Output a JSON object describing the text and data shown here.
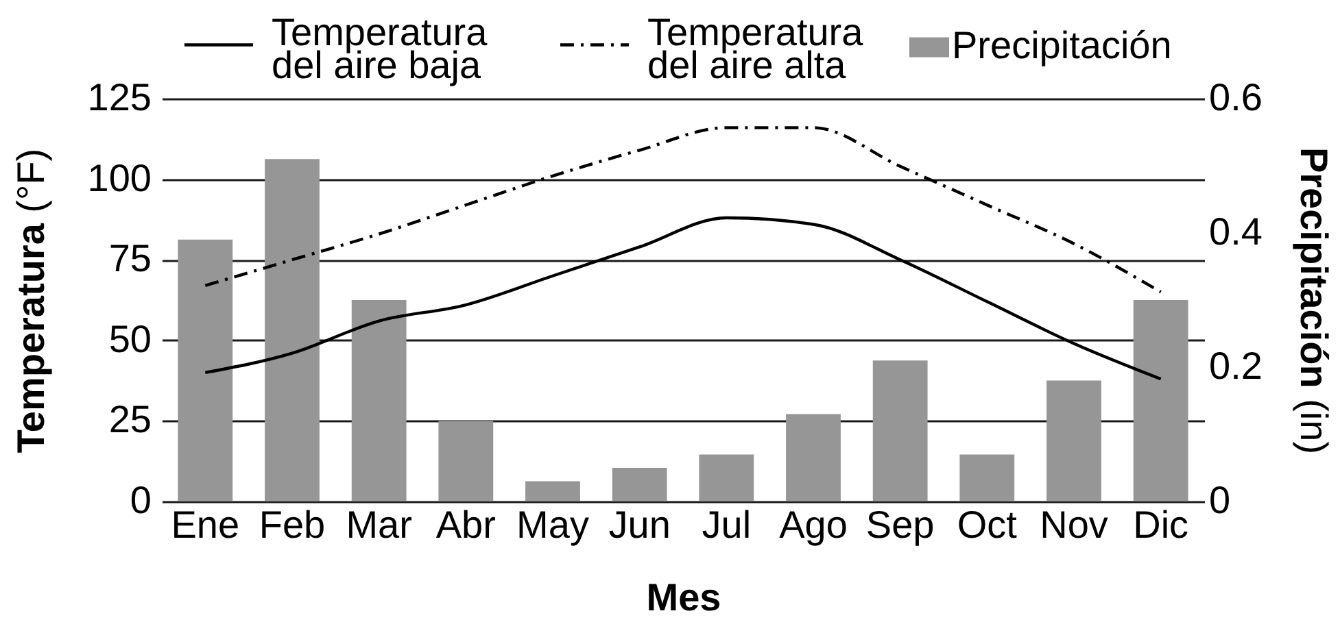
{
  "chart_data": {
    "type": "bar",
    "xlabel": "Mes",
    "ylabel": "Temperatura (°F)",
    "y2label": "Precipitación (in)",
    "categories": [
      "Ene",
      "Feb",
      "Mar",
      "Abr",
      "May",
      "Jun",
      "Jul",
      "Ago",
      "Sep",
      "Oct",
      "Nov",
      "Dic"
    ],
    "series": [
      {
        "name": "Precipitación",
        "axis": "y2",
        "color": "#969696",
        "values": [
          0.39,
          0.51,
          0.3,
          0.12,
          0.03,
          0.05,
          0.07,
          0.13,
          0.21,
          0.07,
          0.18,
          0.3
        ]
      },
      {
        "name": "Temperatura del aire baja",
        "type": "line",
        "color": "#000000",
        "line_style": "solid",
        "values": [
          40,
          46,
          56,
          61,
          70,
          79,
          88,
          86,
          75,
          62,
          49,
          38
        ]
      },
      {
        "name": "Temperatura del aire alta",
        "type": "line",
        "color": "#000000",
        "line_style": "dashdot",
        "values": [
          67,
          75,
          83,
          92,
          101,
          109,
          116,
          116,
          104,
          92,
          80,
          65
        ]
      }
    ],
    "ylim": [
      0,
      125
    ],
    "yticks": [
      0,
      25,
      50,
      75,
      100,
      125
    ],
    "y2lim": [
      0,
      0.6
    ],
    "y2ticks": [
      0,
      0.2,
      0.4,
      0.6
    ],
    "grid": "y",
    "legend": "top"
  }
}
